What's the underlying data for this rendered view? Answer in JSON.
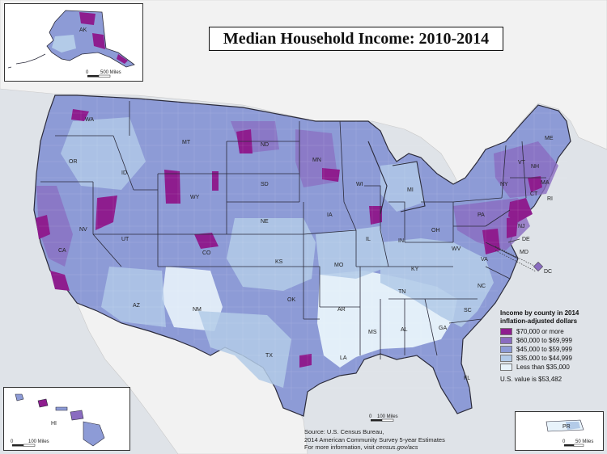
{
  "title": "Median Household Income: 2010-2014",
  "legend": {
    "title_line1": "Income by county in 2014",
    "title_line2": "inflation-adjusted dollars",
    "classes": [
      {
        "label": "$70,000 or more",
        "color": "#8e1d8e"
      },
      {
        "label": "$60,000 to $69,999",
        "color": "#8a6cc0"
      },
      {
        "label": "$45,000 to $59,999",
        "color": "#8d9bd6"
      },
      {
        "label": "$35,000 to $44,999",
        "color": "#b3cbe8"
      },
      {
        "label": "Less than $35,000",
        "color": "#e8f3fb"
      }
    ],
    "us_value": "U.S. value is $53,482"
  },
  "source": {
    "line1": "Source: U.S. Census Bureau,",
    "line2": "2014 American Community Survey 5-year Estimates",
    "line3_prefix": "For more information, visit ",
    "line3_link": "census.gov/acs"
  },
  "scales": {
    "alaska": {
      "zero": "0",
      "distance": "500 Miles"
    },
    "conus": {
      "zero": "0",
      "distance": "100 Miles"
    },
    "hawaii": {
      "zero": "0",
      "distance": "100 Miles"
    },
    "puerto_rico": {
      "zero": "0",
      "distance": "50 Miles"
    }
  },
  "state_labels": [
    "WA",
    "OR",
    "CA",
    "NV",
    "ID",
    "MT",
    "WY",
    "UT",
    "AZ",
    "CO",
    "NM",
    "ND",
    "SD",
    "NE",
    "KS",
    "OK",
    "TX",
    "MN",
    "IA",
    "MO",
    "AR",
    "LA",
    "WI",
    "IL",
    "MS",
    "MI",
    "IN",
    "KY",
    "TN",
    "AL",
    "GA",
    "FL",
    "SC",
    "NC",
    "VA",
    "WV",
    "OH",
    "PA",
    "NY",
    "NJ",
    "DE",
    "MD",
    "DC",
    "VT",
    "NH",
    "ME",
    "MA",
    "RI",
    "CT",
    "AK",
    "HI",
    "PR"
  ],
  "colors": {
    "water": "#dfe3e8",
    "border": "#2b2b3b"
  }
}
